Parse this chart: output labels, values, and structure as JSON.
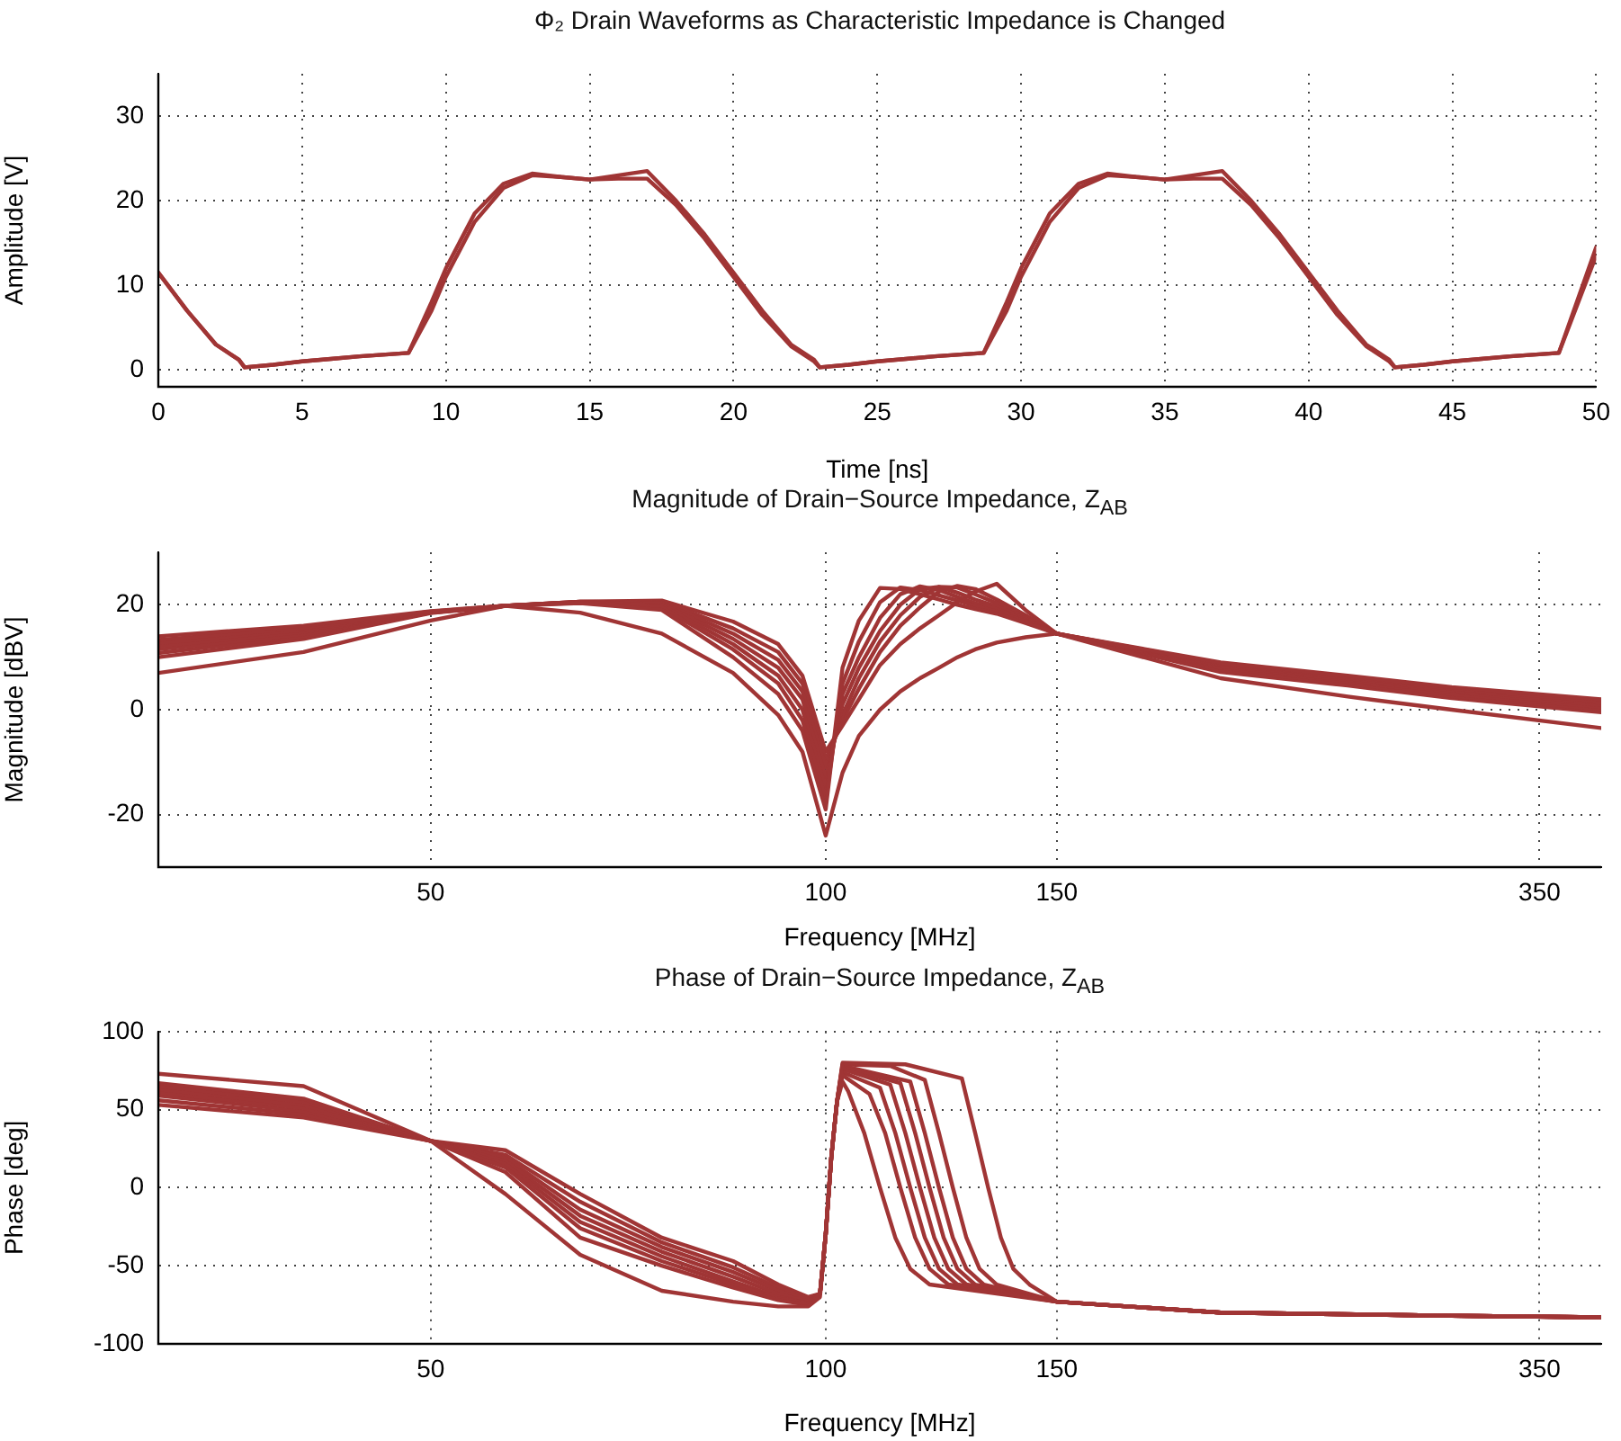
{
  "chart_data": [
    {
      "type": "line",
      "title": "Φ₂ Drain Waveforms as Characteristic Impedance is Changed",
      "xlabel": "Time [ns]",
      "ylabel": "Amplitude [V]",
      "x": [
        0,
        1,
        2,
        2.8,
        3,
        4,
        5,
        6,
        7,
        8.7,
        9.5,
        10,
        11,
        12,
        13,
        14,
        15,
        16,
        17,
        18,
        19,
        20,
        21,
        22,
        22.8,
        23,
        24,
        25,
        26,
        27,
        28.7,
        29.5,
        30,
        31,
        32,
        33,
        34,
        35,
        36,
        37,
        38,
        39,
        40,
        41,
        42,
        42.8,
        43,
        44,
        45,
        46,
        47,
        48.7,
        50
      ],
      "series": [
        {
          "color": "#a03535",
          "values": [
            11.5,
            7,
            3,
            1.2,
            0.3,
            0.6,
            1,
            1.3,
            1.6,
            2,
            8,
            12,
            18.5,
            22,
            23.2,
            22.8,
            22.5,
            23,
            23.5,
            20,
            16,
            11.5,
            7,
            3,
            1.2,
            0.3,
            0.6,
            1,
            1.3,
            1.6,
            2,
            8,
            12,
            18.5,
            22,
            23.2,
            22.8,
            22.5,
            23,
            23.5,
            20,
            16,
            11.5,
            7,
            3,
            1.2,
            0.3,
            0.6,
            1,
            1.3,
            1.6,
            2,
            14.5
          ]
        },
        {
          "color": "#a03535",
          "values": [
            11.5,
            7,
            3,
            1.2,
            0.3,
            0.6,
            1,
            1.3,
            1.6,
            2,
            7,
            11,
            17.5,
            21.5,
            23,
            22.8,
            22.5,
            22.6,
            22.6,
            19.5,
            15.5,
            11,
            6.5,
            2.8,
            1,
            0.3,
            0.6,
            1,
            1.3,
            1.6,
            2,
            7,
            11,
            17.5,
            21.5,
            23,
            22.8,
            22.5,
            22.6,
            22.6,
            19.5,
            15.5,
            11,
            6.5,
            2.8,
            1,
            0.3,
            0.6,
            1,
            1.3,
            1.6,
            2,
            13.5
          ]
        }
      ],
      "xlim": [
        0,
        50
      ],
      "xticks": [
        0,
        5,
        10,
        15,
        20,
        25,
        30,
        35,
        40,
        45,
        50
      ],
      "ylim": [
        -2,
        35
      ],
      "yticks": [
        0,
        10,
        20,
        30
      ],
      "grid": true,
      "legend": false,
      "marker": "none",
      "line_style": "solid"
    },
    {
      "type": "line",
      "title": "Magnitude of Drain−Source Impedance, Z$_{AB}$",
      "xlabel": "Frequency [MHz]",
      "ylabel": "Magnitude [dBV]",
      "x": [
        31,
        40,
        50,
        57,
        65,
        75,
        85,
        92,
        96,
        100,
        103,
        106,
        110,
        114,
        118,
        122,
        126,
        130,
        135,
        142,
        150,
        200,
        250,
        300,
        390
      ],
      "series": [
        {
          "color": "#a03535",
          "values": [
            7,
            11,
            17,
            19.8,
            18.5,
            14.5,
            7,
            -1,
            -8,
            -24,
            -12,
            -5,
            0,
            3.5,
            6,
            8,
            10,
            11.5,
            12.8,
            13.8,
            14.5,
            6,
            2.5,
            0,
            -3.5
          ]
        },
        {
          "color": "#a03535",
          "values": [
            14,
            16,
            18.8,
            19.8,
            20.3,
            19,
            10,
            3,
            -4,
            -19,
            8,
            17,
            23.2,
            23,
            22,
            21,
            20,
            19.2,
            18.3,
            16.5,
            14.5,
            9,
            6.5,
            4.3,
            2
          ]
        },
        {
          "color": "#a03535",
          "values": [
            13.3,
            15.6,
            18.7,
            19.8,
            20.4,
            19.5,
            11.5,
            5,
            -2,
            -17,
            5,
            13,
            20.5,
            23.3,
            22.8,
            21.8,
            20.8,
            19.8,
            18.7,
            16.8,
            14.5,
            8.8,
            6.3,
            4,
            1.6
          ]
        },
        {
          "color": "#a03535",
          "values": [
            12.7,
            15.2,
            18.6,
            19.8,
            20.5,
            19.9,
            12.5,
            6.5,
            0,
            -15,
            3,
            10,
            17.5,
            22,
            23.5,
            22.8,
            21.5,
            20.3,
            19.2,
            17,
            14.5,
            8.6,
            6,
            3.7,
            1.3
          ]
        },
        {
          "color": "#a03535",
          "values": [
            12.1,
            14.8,
            18.6,
            19.8,
            20.5,
            20.2,
            13.5,
            8,
            2,
            -13,
            1,
            8,
            15,
            20,
            23,
            23.4,
            22.3,
            21,
            19.7,
            17.3,
            14.5,
            8.3,
            5.7,
            3.4,
            0.9
          ]
        },
        {
          "color": "#a03535",
          "values": [
            11.5,
            14.4,
            18.5,
            19.8,
            20.6,
            20.4,
            14.5,
            9.5,
            3.5,
            -11,
            -1,
            6,
            13,
            18,
            21.5,
            23.4,
            23.3,
            22,
            20.3,
            17.6,
            14.5,
            8,
            5.4,
            3,
            0.5
          ]
        },
        {
          "color": "#a03535",
          "values": [
            10.8,
            14,
            18.5,
            19.8,
            20.6,
            20.6,
            15.5,
            11,
            5,
            -9.5,
            -2,
            4,
            11,
            16,
            19.5,
            22.5,
            23.6,
            23,
            21,
            18,
            14.5,
            7.6,
            5,
            2.6,
            0.1
          ]
        },
        {
          "color": "#a03535",
          "values": [
            10,
            13.5,
            18.4,
            19.8,
            20.6,
            20.8,
            16.8,
            12.5,
            6.5,
            -8,
            -3,
            2,
            8.5,
            12.5,
            15.5,
            18,
            20.5,
            22.5,
            24,
            19,
            14.5,
            7.2,
            4.6,
            2.2,
            -0.5
          ]
        }
      ],
      "xlim": [
        31,
        390
      ],
      "xticks": [
        50,
        100,
        150,
        350
      ],
      "ylim": [
        -30,
        30
      ],
      "yticks": [
        -20,
        0,
        20
      ],
      "log": "x",
      "grid": true,
      "legend": false,
      "marker": "none",
      "line_style": "solid"
    },
    {
      "type": "line",
      "title": "Phase of Drain−Source Impedance, Z$_{AB}$",
      "xlabel": "Frequency [MHz]",
      "ylabel": "Phase [deg]",
      "series": [
        {
          "color": "#a03535",
          "x": [
            31,
            40,
            50,
            57,
            65,
            75,
            85,
            92,
            97,
            99,
            100,
            101,
            102,
            103,
            115,
            127,
            130,
            133,
            136,
            139,
            143,
            150,
            200,
            300,
            390
          ],
          "values": [
            73,
            65,
            30,
            -4,
            -43,
            -66,
            -73,
            -76,
            -76,
            -70,
            -30,
            20,
            55,
            80,
            79,
            70,
            35,
            0,
            -32,
            -52,
            -62,
            -73,
            -80,
            -82,
            -83
          ]
        },
        {
          "color": "#a03535",
          "x": [
            31,
            40,
            50,
            57,
            65,
            75,
            85,
            92,
            97,
            99,
            100,
            101,
            102,
            103,
            104,
            107,
            110,
            113,
            116,
            120,
            150,
            200,
            300,
            390
          ],
          "values": [
            67,
            57,
            30,
            10,
            -32,
            -50,
            -64,
            -72,
            -75,
            -68,
            -30,
            20,
            55,
            68,
            62,
            35,
            0,
            -32,
            -52,
            -62,
            -73,
            -80,
            -82,
            -83
          ]
        },
        {
          "color": "#a03535",
          "x": [
            31,
            40,
            50,
            57,
            65,
            75,
            85,
            92,
            97,
            99,
            100,
            101,
            102,
            103,
            108,
            111,
            114,
            117,
            120,
            124,
            150,
            200,
            300,
            390
          ],
          "values": [
            65,
            55,
            30,
            13,
            -26,
            -47,
            -62,
            -71,
            -74,
            -68,
            -30,
            20,
            55,
            72,
            60,
            35,
            0,
            -32,
            -52,
            -62,
            -73,
            -80,
            -82,
            -83
          ]
        },
        {
          "color": "#a03535",
          "x": [
            31,
            40,
            50,
            57,
            65,
            75,
            85,
            92,
            97,
            99,
            100,
            101,
            102,
            103,
            110,
            113,
            116,
            119,
            122,
            126,
            150,
            200,
            300,
            390
          ],
          "values": [
            63,
            53,
            30,
            15,
            -22,
            -44,
            -60,
            -70,
            -74,
            -68,
            -30,
            20,
            55,
            74,
            64,
            35,
            0,
            -32,
            -52,
            -62,
            -73,
            -80,
            -82,
            -83
          ]
        },
        {
          "color": "#a03535",
          "x": [
            31,
            40,
            50,
            57,
            65,
            75,
            85,
            92,
            97,
            99,
            100,
            101,
            102,
            103,
            112,
            115,
            118,
            121,
            124,
            128,
            150,
            200,
            300,
            390
          ],
          "values": [
            61,
            51,
            30,
            17,
            -18,
            -41,
            -57,
            -68,
            -73,
            -68,
            -30,
            20,
            55,
            76,
            66,
            35,
            0,
            -32,
            -52,
            -62,
            -73,
            -80,
            -82,
            -83
          ]
        },
        {
          "color": "#a03535",
          "x": [
            31,
            40,
            50,
            57,
            65,
            75,
            85,
            92,
            97,
            99,
            100,
            101,
            102,
            103,
            114,
            117,
            120,
            123,
            126,
            130,
            150,
            200,
            300,
            390
          ],
          "values": [
            59,
            49,
            30,
            19,
            -14,
            -38,
            -54,
            -66,
            -72,
            -68,
            -30,
            20,
            55,
            77,
            67,
            35,
            0,
            -32,
            -52,
            -62,
            -73,
            -80,
            -82,
            -83
          ]
        },
        {
          "color": "#a03535",
          "x": [
            31,
            40,
            50,
            57,
            65,
            75,
            85,
            92,
            97,
            99,
            100,
            101,
            102,
            103,
            116,
            119,
            122,
            125,
            128,
            132,
            150,
            200,
            300,
            390
          ],
          "values": [
            56,
            47,
            30,
            21,
            -9,
            -35,
            -51,
            -64,
            -71,
            -68,
            -30,
            20,
            55,
            78,
            68,
            35,
            0,
            -32,
            -52,
            -62,
            -73,
            -80,
            -82,
            -83
          ]
        },
        {
          "color": "#a03535",
          "x": [
            31,
            40,
            50,
            57,
            65,
            75,
            85,
            92,
            97,
            99,
            100,
            101,
            102,
            103,
            112,
            119,
            122,
            125,
            128,
            131,
            135,
            150,
            200,
            300,
            390
          ],
          "values": [
            53,
            45,
            30,
            24,
            -4,
            -32,
            -47,
            -62,
            -70,
            -68,
            -30,
            20,
            55,
            79,
            78,
            69,
            35,
            0,
            -32,
            -52,
            -62,
            -73,
            -80,
            -82,
            -83
          ]
        }
      ],
      "xlim": [
        31,
        390
      ],
      "xticks": [
        50,
        100,
        150,
        350
      ],
      "ylim": [
        -100,
        100
      ],
      "yticks": [
        -100,
        -50,
        0,
        50,
        100
      ],
      "log": "x",
      "grid": true,
      "legend": false,
      "marker": "none",
      "line_style": "solid"
    }
  ]
}
